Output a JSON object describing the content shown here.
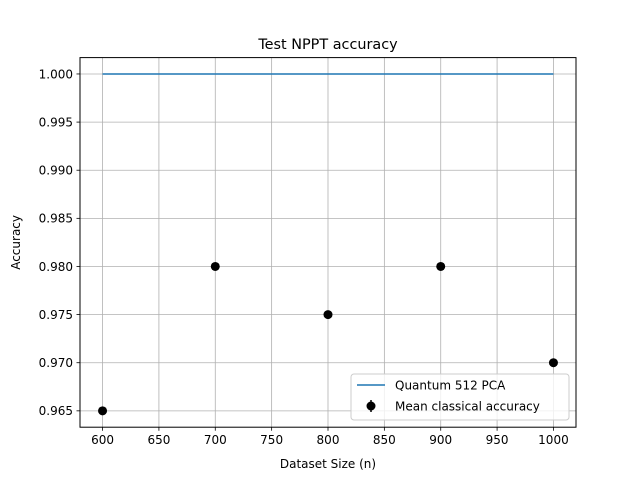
{
  "chart_data": {
    "type": "scatter",
    "title": "Test NPPT accuracy",
    "xlabel": "Dataset Size (n)",
    "ylabel": "Accuracy",
    "xlim": [
      580,
      1020
    ],
    "ylim": [
      0.9633,
      1.0017
    ],
    "x_ticks": [
      600,
      650,
      700,
      750,
      800,
      850,
      900,
      950,
      1000
    ],
    "y_ticks": [
      0.965,
      0.97,
      0.975,
      0.98,
      0.985,
      0.99,
      0.995,
      1.0
    ],
    "y_tick_labels": [
      "0.965",
      "0.970",
      "0.975",
      "0.980",
      "0.985",
      "0.990",
      "0.995",
      "1.000"
    ],
    "grid": true,
    "legend_position": "lower-right",
    "series": [
      {
        "name": "Quantum 512 PCA",
        "kind": "line",
        "color": "#1f77b4",
        "x": [
          600,
          1000
        ],
        "y": [
          1.0,
          1.0
        ]
      },
      {
        "name": "Mean classical accuracy",
        "kind": "errorbar-markers",
        "color": "#000000",
        "x": [
          600,
          700,
          800,
          900,
          1000
        ],
        "y": [
          0.965,
          0.98,
          0.975,
          0.98,
          0.97
        ]
      }
    ]
  }
}
